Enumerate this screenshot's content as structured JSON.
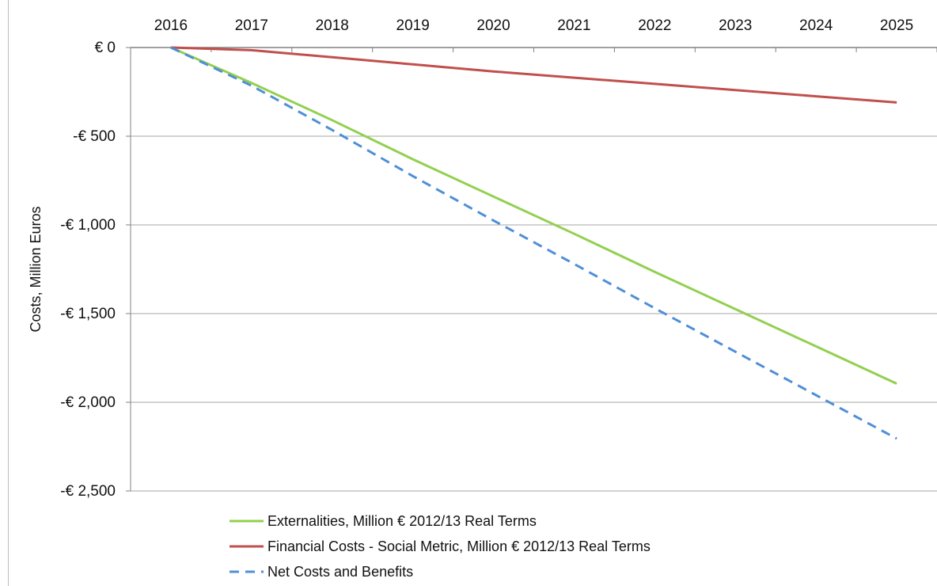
{
  "chart_data": {
    "type": "line",
    "title": "",
    "xlabel": "",
    "ylabel": "Costs, Million Euros",
    "x": [
      "2016",
      "2017",
      "2018",
      "2019",
      "2020",
      "2021",
      "2022",
      "2023",
      "2024",
      "2025"
    ],
    "y_ticks": [
      0,
      -500,
      -1000,
      -1500,
      -2000,
      -2500
    ],
    "y_tick_labels": [
      "€ 0",
      "-€ 500",
      "-€ 1,000",
      "-€ 1,500",
      "-€ 2,000",
      "-€ 2,500"
    ],
    "ylim": [
      -2500,
      0
    ],
    "x_axis_position": "top",
    "grid": "horizontal",
    "legend_position": "bottom",
    "series": [
      {
        "name": "Externalities, Million € 2012/13 Real Terms",
        "color": "#92d050",
        "style": "solid",
        "values": [
          0,
          -200,
          -410,
          -630,
          -840,
          -1050,
          -1265,
          -1475,
          -1685,
          -1895
        ]
      },
      {
        "name": "Financial Costs - Social Metric, Million € 2012/13 Real Terms",
        "color": "#c0504d",
        "style": "solid",
        "values": [
          0,
          -15,
          -55,
          -95,
          -135,
          -170,
          -205,
          -240,
          -275,
          -310
        ]
      },
      {
        "name": "Net Costs and Benefits",
        "color": "#4f8fd6",
        "style": "dashed",
        "values": [
          0,
          -215,
          -465,
          -725,
          -975,
          -1220,
          -1470,
          -1715,
          -1960,
          -2205
        ]
      }
    ]
  }
}
